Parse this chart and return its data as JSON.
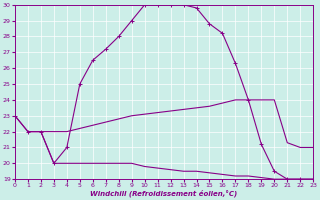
{
  "xlabel": "Windchill (Refroidissement éolien,°C)",
  "xlim": [
    0,
    23
  ],
  "ylim": [
    19,
    30
  ],
  "xticks": [
    0,
    1,
    2,
    3,
    4,
    5,
    6,
    7,
    8,
    9,
    10,
    11,
    12,
    13,
    14,
    15,
    16,
    17,
    18,
    19,
    20,
    21,
    22,
    23
  ],
  "yticks": [
    19,
    20,
    21,
    22,
    23,
    24,
    25,
    26,
    27,
    28,
    29,
    30
  ],
  "bg_color": "#cceee8",
  "line_color": "#880088",
  "line1_x": [
    0,
    1,
    2,
    3,
    4,
    5,
    6,
    7,
    8,
    9,
    10,
    11,
    12,
    13,
    14,
    15,
    16,
    17,
    18,
    19,
    20,
    21,
    22,
    23
  ],
  "line1_y": [
    23,
    22,
    22,
    20,
    21,
    25.0,
    26.5,
    27.2,
    28.0,
    29.0,
    30.0,
    30.0,
    30.0,
    30.0,
    29.8,
    28.8,
    28.2,
    26.3,
    24.0,
    21.2,
    19.5,
    19.0,
    19.0,
    19.0
  ],
  "line2_x": [
    0,
    1,
    2,
    3,
    4,
    5,
    6,
    7,
    8,
    9,
    10,
    11,
    12,
    13,
    14,
    15,
    16,
    17,
    18,
    19,
    20,
    21,
    22,
    23
  ],
  "line2_y": [
    23,
    22,
    22,
    22,
    22,
    22.2,
    22.4,
    22.6,
    22.8,
    23.0,
    23.1,
    23.2,
    23.3,
    23.4,
    23.5,
    23.6,
    23.8,
    24.0,
    24.0,
    24.0,
    24.0,
    21.3,
    21.0,
    21.0
  ],
  "line3_x": [
    1,
    2,
    3,
    4,
    5,
    6,
    7,
    8,
    9,
    10,
    11,
    12,
    13,
    14,
    15,
    16,
    17,
    18,
    19,
    20,
    21,
    22,
    23
  ],
  "line3_y": [
    22,
    22,
    20,
    20,
    20,
    20,
    20,
    20,
    20,
    19.8,
    19.7,
    19.6,
    19.5,
    19.5,
    19.4,
    19.3,
    19.2,
    19.2,
    19.1,
    19.0,
    19.0,
    19.0,
    19.0
  ]
}
